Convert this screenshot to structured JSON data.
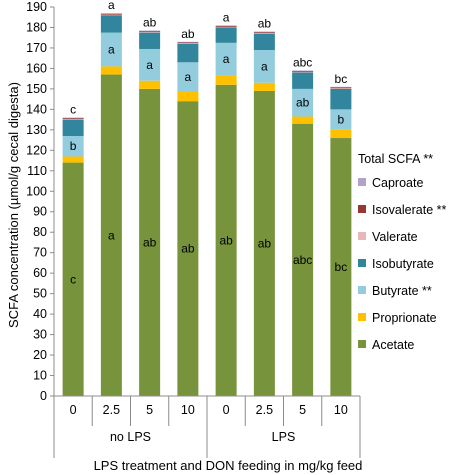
{
  "chart_data": {
    "type": "bar",
    "stacked": true,
    "title": "",
    "xlabel": "LPS treatment and DON feeding in mg/kg feed",
    "ylabel": "SCFA concentration (µmol/g cecal digesta)",
    "ylim": [
      0,
      190
    ],
    "ytick_step": 10,
    "yticks": [
      "0",
      "10",
      "20",
      "30",
      "40",
      "50",
      "60",
      "70",
      "80",
      "90",
      "100",
      "110",
      "120",
      "130",
      "140",
      "150",
      "160",
      "170",
      "180",
      "190"
    ],
    "grid": false,
    "legend_position": "right",
    "categories": [
      "0",
      "2.5",
      "5",
      "10",
      "0",
      "2.5",
      "5",
      "10"
    ],
    "groups": [
      {
        "label": "no LPS",
        "indices": [
          0,
          1,
          2,
          3
        ]
      },
      {
        "label": "LPS",
        "indices": [
          4,
          5,
          6,
          7
        ]
      }
    ],
    "total_label": {
      "name": "Total SCFA",
      "mark": "**"
    },
    "total_letters": [
      "c",
      "a",
      "ab",
      "ab",
      "a",
      "ab",
      "abc",
      "bc"
    ],
    "series": [
      {
        "name": "Acetate",
        "color": "#77933c",
        "mark": "",
        "values": [
          114,
          157,
          150,
          144,
          152,
          149,
          133,
          126
        ],
        "letters": [
          "c",
          "a",
          "ab",
          "ab",
          "ab",
          "ab",
          "abc",
          "bc"
        ]
      },
      {
        "name": "Proprionate",
        "color": "#ffc000",
        "mark": "",
        "values": [
          3,
          4,
          4,
          4.5,
          4.5,
          4,
          3.5,
          4
        ],
        "letters": [
          "",
          "",
          "",
          "",
          "",
          "",
          "",
          ""
        ]
      },
      {
        "name": "Butyrate",
        "color": "#93cddd",
        "mark": "**",
        "values": [
          10,
          16.5,
          15.5,
          14.5,
          16,
          16,
          13.5,
          10
        ],
        "letters": [
          "b",
          "a",
          "a",
          "a",
          "a",
          "a",
          "ab",
          "b"
        ]
      },
      {
        "name": "Isobutyrate",
        "color": "#31859c",
        "mark": "",
        "values": [
          8,
          8.5,
          8,
          9,
          7.5,
          8,
          8,
          10
        ],
        "letters": [
          "",
          "",
          "",
          "",
          "",
          "",
          "",
          ""
        ]
      },
      {
        "name": "Valerate",
        "color": "#e6b9b8",
        "mark": "",
        "values": [
          0.3,
          0.3,
          0.3,
          0.3,
          0.3,
          0.3,
          0.3,
          0.3
        ],
        "letters": [
          "",
          "",
          "",
          "",
          "",
          "",
          "",
          ""
        ]
      },
      {
        "name": "Isovalerate",
        "color": "#953735",
        "mark": "**",
        "values": [
          0.4,
          0.4,
          0.4,
          0.4,
          0.4,
          0.4,
          0.4,
          0.4
        ],
        "letters": [
          "",
          "",
          "",
          "",
          "",
          "",
          "",
          ""
        ]
      },
      {
        "name": "Caproate",
        "color": "#b3a2c7",
        "mark": "",
        "values": [
          0.3,
          0.3,
          0.3,
          0.3,
          0.3,
          0.3,
          0.3,
          0.3
        ],
        "letters": [
          "",
          "",
          "",
          "",
          "",
          "",
          "",
          ""
        ]
      }
    ]
  }
}
